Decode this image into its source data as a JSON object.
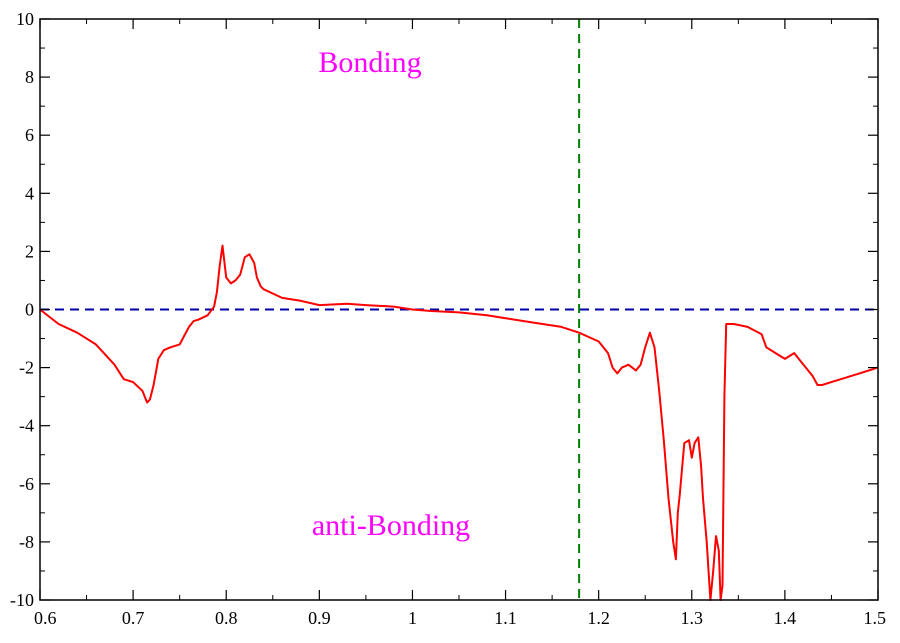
{
  "chart_data": {
    "type": "line",
    "title": "",
    "xlabel": "",
    "ylabel": "",
    "xlim": [
      0.6,
      1.5
    ],
    "ylim": [
      -10,
      10
    ],
    "x_ticks": [
      "0.6",
      "0.7",
      "0.8",
      "0.9",
      "1",
      "1.1",
      "1.2",
      "1.3",
      "1.4",
      "1.5"
    ],
    "y_ticks": [
      "-10",
      "-8",
      "-6",
      "-4",
      "-2",
      "0",
      "2",
      "4",
      "6",
      "8",
      "10"
    ],
    "grid": false,
    "reference_lines": [
      {
        "orientation": "horizontal",
        "value": 0,
        "style": "dashed",
        "color": "#0000aa"
      },
      {
        "orientation": "vertical",
        "value": 1.179,
        "style": "dashed",
        "color": "#008000"
      }
    ],
    "annotations": [
      {
        "text": "Bonding",
        "x": 0.78,
        "y": 8.4,
        "color": "#ff00ff"
      },
      {
        "text": "anti-Bonding",
        "x": 0.779,
        "y": -7.4,
        "color": "#ff00ff"
      }
    ],
    "series": [
      {
        "color": "#ff0000",
        "x": [
          0.6,
          0.62,
          0.64,
          0.66,
          0.68,
          0.69,
          0.7,
          0.71,
          0.715,
          0.718,
          0.722,
          0.727,
          0.733,
          0.74,
          0.75,
          0.755,
          0.76,
          0.765,
          0.77,
          0.78,
          0.787,
          0.79,
          0.793,
          0.796,
          0.8,
          0.805,
          0.81,
          0.815,
          0.82,
          0.825,
          0.83,
          0.833,
          0.837,
          0.84,
          0.86,
          0.88,
          0.9,
          0.93,
          0.95,
          0.98,
          1.0,
          1.02,
          1.05,
          1.08,
          1.1,
          1.13,
          1.16,
          1.179,
          1.2,
          1.21,
          1.215,
          1.22,
          1.225,
          1.232,
          1.24,
          1.245,
          1.25,
          1.255,
          1.26,
          1.265,
          1.27,
          1.275,
          1.28,
          1.283,
          1.285,
          1.287,
          1.292,
          1.297,
          1.3,
          1.303,
          1.307,
          1.31,
          1.312,
          1.316,
          1.32,
          1.323,
          1.326,
          1.329,
          1.331,
          1.333,
          1.335,
          1.337,
          1.345,
          1.36,
          1.375,
          1.38,
          1.39,
          1.4,
          1.41,
          1.42,
          1.43,
          1.435,
          1.44,
          1.45,
          1.46,
          1.47,
          1.48,
          1.49,
          1.5
        ],
        "y": [
          0.0,
          -0.5,
          -0.8,
          -1.2,
          -1.9,
          -2.4,
          -2.5,
          -2.8,
          -3.2,
          -3.1,
          -2.6,
          -1.7,
          -1.4,
          -1.3,
          -1.2,
          -0.9,
          -0.6,
          -0.4,
          -0.35,
          -0.2,
          0.1,
          0.6,
          1.5,
          2.2,
          1.1,
          0.9,
          1.0,
          1.2,
          1.8,
          1.9,
          1.6,
          1.1,
          0.8,
          0.7,
          0.4,
          0.3,
          0.15,
          0.2,
          0.15,
          0.1,
          0.0,
          -0.05,
          -0.1,
          -0.2,
          -0.3,
          -0.45,
          -0.6,
          -0.8,
          -1.1,
          -1.5,
          -2.0,
          -2.2,
          -2.0,
          -1.9,
          -2.1,
          -1.9,
          -1.3,
          -0.8,
          -1.3,
          -2.8,
          -4.5,
          -6.5,
          -8.0,
          -8.6,
          -7.0,
          -6.4,
          -4.6,
          -4.5,
          -5.1,
          -4.6,
          -4.4,
          -5.4,
          -6.5,
          -8.0,
          -10.0,
          -9.0,
          -7.8,
          -8.3,
          -10.0,
          -9.5,
          -3.0,
          -0.5,
          -0.5,
          -0.6,
          -0.85,
          -1.3,
          -1.5,
          -1.7,
          -1.5,
          -1.9,
          -2.3,
          -2.6,
          -2.6,
          -2.5,
          -2.4,
          -2.3,
          -2.2,
          -2.1,
          -2.0
        ]
      }
    ]
  }
}
